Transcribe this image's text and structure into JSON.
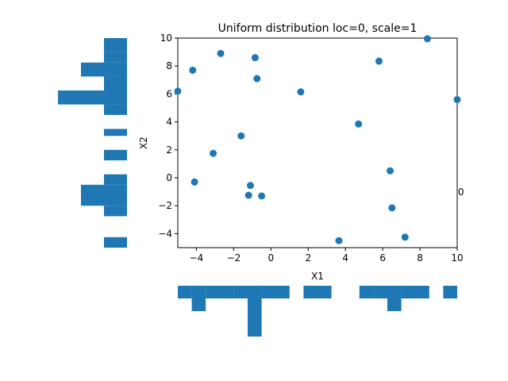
{
  "chart_data": {
    "type": "scatter",
    "title": "Uniform distribution loc=0, scale=1",
    "xlabel": "X1",
    "ylabel": "X2",
    "xlim": [
      -5,
      10
    ],
    "ylim": [
      -5,
      10
    ],
    "xticks": [
      -4,
      -2,
      0,
      2,
      4,
      6,
      8,
      10
    ],
    "yticks": [
      -4,
      -2,
      0,
      2,
      4,
      6,
      8,
      10
    ],
    "grid": false,
    "point_color": "#1f77b4",
    "stray_label": "0",
    "points": [
      {
        "x": -5.0,
        "y": 6.2
      },
      {
        "x": -4.2,
        "y": 7.7
      },
      {
        "x": -2.7,
        "y": 8.9
      },
      {
        "x": -0.85,
        "y": 8.6
      },
      {
        "x": -0.75,
        "y": 7.1
      },
      {
        "x": 1.6,
        "y": 6.15
      },
      {
        "x": 5.8,
        "y": 8.35
      },
      {
        "x": 8.4,
        "y": 9.95
      },
      {
        "x": 10.0,
        "y": 5.6
      },
      {
        "x": -1.6,
        "y": 3.0
      },
      {
        "x": -3.1,
        "y": 1.75
      },
      {
        "x": 4.7,
        "y": 3.85
      },
      {
        "x": -4.1,
        "y": -0.3
      },
      {
        "x": -1.1,
        "y": -0.55
      },
      {
        "x": -1.2,
        "y": -1.25
      },
      {
        "x": -0.5,
        "y": -1.3
      },
      {
        "x": 6.4,
        "y": 0.5
      },
      {
        "x": 6.5,
        "y": -2.15
      },
      {
        "x": 3.65,
        "y": -4.5
      },
      {
        "x": 7.2,
        "y": -4.25
      }
    ],
    "marginal_x": {
      "color": "#1f77b4",
      "bins": [
        -5.0,
        -4.25,
        -3.5,
        -2.0,
        -1.25,
        -0.5,
        1.0,
        1.75,
        3.25,
        4.75,
        5.5,
        6.25,
        7.0,
        8.5,
        9.25,
        10.0
      ],
      "counts": [
        1,
        2,
        1,
        1,
        4,
        1,
        0,
        1,
        0,
        1,
        1,
        2,
        1,
        0,
        1
      ]
    },
    "marginal_y": {
      "color": "#1f77b4",
      "bins": [
        -5.0,
        -4.25,
        -2.75,
        -2.0,
        -1.25,
        -0.5,
        0.25,
        1.25,
        2.0,
        3.0,
        3.5,
        4.5,
        5.25,
        6.25,
        7.25,
        8.25,
        9.0,
        10.0
      ],
      "counts": [
        1,
        0,
        1,
        2,
        2,
        1,
        0,
        1,
        0,
        1,
        0,
        1,
        3,
        1,
        2,
        1,
        1
      ]
    }
  }
}
